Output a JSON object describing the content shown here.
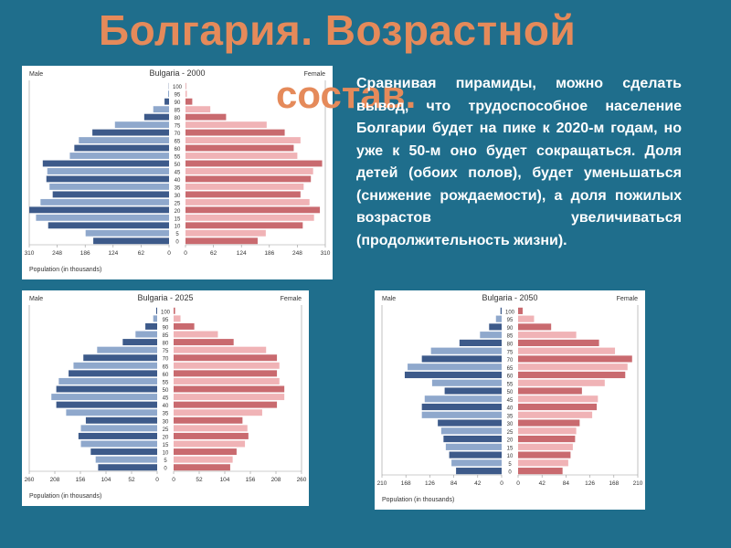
{
  "slide": {
    "title_line1": "Болгария. Возрастной",
    "title_line2": "состав.",
    "body": "Сравнивая пирамиды, можно сделать вывод, что трудоспособное население Болгарии будет на пике к 2020-м годам, но уже к 50-м оно будет сокращаться. Доля детей (обоих полов), будет уменьшаться (снижение рождаемости), а доля пожилых возрастов увеличиваться (продолжительность жизни)."
  },
  "colors": {
    "background": "#1f6e8c",
    "title": "#e58a5a",
    "male_dark": "#3d5a8a",
    "male_light": "#8fa8cc",
    "female_dark": "#c96a6f",
    "female_light": "#f0b3b6"
  },
  "chart_data": [
    {
      "type": "bar",
      "subtype": "population-pyramid",
      "title": "Bulgaria - 2000",
      "left_label": "Male",
      "right_label": "Female",
      "xlabel": "Population (in thousands)",
      "xticks_left": [
        "310",
        "248",
        "186",
        "124",
        "62",
        "0"
      ],
      "xticks_right": [
        "0",
        "62",
        "124",
        "186",
        "248",
        "310"
      ],
      "xmax": 310,
      "categories": [
        "0",
        "5",
        "10",
        "15",
        "20",
        "25",
        "30",
        "35",
        "40",
        "45",
        "50",
        "55",
        "60",
        "65",
        "70",
        "75",
        "80",
        "85",
        "90",
        "95",
        "100"
      ],
      "series": [
        {
          "name": "Male",
          "values": [
            168,
            185,
            268,
            295,
            310,
            285,
            258,
            265,
            272,
            270,
            280,
            220,
            210,
            200,
            170,
            120,
            55,
            35,
            10,
            2,
            0.5
          ]
        },
        {
          "name": "Female",
          "values": [
            160,
            178,
            260,
            285,
            298,
            275,
            255,
            262,
            278,
            283,
            303,
            248,
            240,
            255,
            220,
            180,
            90,
            55,
            15,
            3,
            1
          ]
        }
      ]
    },
    {
      "type": "bar",
      "subtype": "population-pyramid",
      "title": "Bulgaria - 2025",
      "left_label": "Male",
      "right_label": "Female",
      "xlabel": "Population (in thousands)",
      "xticks_left": [
        "260",
        "208",
        "156",
        "104",
        "52",
        "0"
      ],
      "xticks_right": [
        "0",
        "52",
        "104",
        "156",
        "208",
        "260"
      ],
      "xmax": 260,
      "categories": [
        "0",
        "5",
        "10",
        "15",
        "20",
        "25",
        "30",
        "35",
        "40",
        "45",
        "50",
        "55",
        "60",
        "65",
        "70",
        "75",
        "80",
        "85",
        "90",
        "95",
        "100"
      ],
      "series": [
        {
          "name": "Male",
          "values": [
            120,
            125,
            135,
            155,
            160,
            155,
            145,
            185,
            205,
            215,
            205,
            200,
            180,
            170,
            150,
            122,
            70,
            44,
            24,
            8,
            2
          ]
        },
        {
          "name": "Female",
          "values": [
            115,
            120,
            128,
            145,
            152,
            150,
            140,
            180,
            210,
            225,
            225,
            215,
            210,
            215,
            210,
            188,
            122,
            90,
            42,
            14,
            3
          ]
        }
      ]
    },
    {
      "type": "bar",
      "subtype": "population-pyramid",
      "title": "Bulgaria - 2050",
      "left_label": "Male",
      "right_label": "Female",
      "xlabel": "Population (in thousands)",
      "xticks_left": [
        "210",
        "168",
        "126",
        "84",
        "42",
        "0"
      ],
      "xticks_right": [
        "0",
        "42",
        "84",
        "126",
        "168",
        "210"
      ],
      "xmax": 210,
      "categories": [
        "0",
        "5",
        "10",
        "15",
        "20",
        "25",
        "30",
        "35",
        "40",
        "45",
        "50",
        "55",
        "60",
        "65",
        "70",
        "75",
        "80",
        "85",
        "90",
        "95",
        "100"
      ],
      "series": [
        {
          "name": "Male",
          "values": [
            80,
            88,
            92,
            98,
            102,
            106,
            112,
            140,
            140,
            135,
            100,
            122,
            170,
            165,
            140,
            124,
            74,
            38,
            22,
            10,
            2
          ]
        },
        {
          "name": "Female",
          "values": [
            78,
            88,
            92,
            96,
            100,
            102,
            108,
            130,
            138,
            140,
            112,
            152,
            188,
            192,
            200,
            170,
            142,
            102,
            58,
            28,
            8
          ]
        }
      ]
    }
  ]
}
